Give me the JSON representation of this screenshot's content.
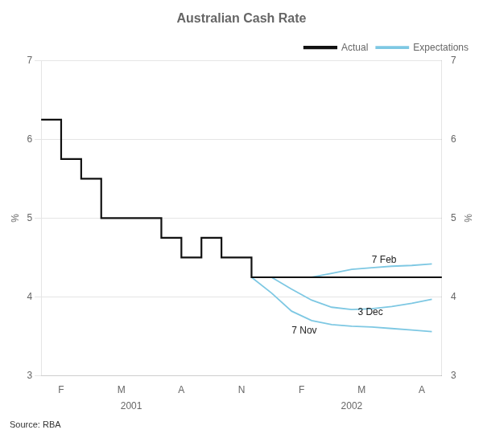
{
  "chart_data": {
    "type": "line",
    "title": "Australian Cash Rate",
    "ylabel": "%",
    "y2label": "%",
    "xlim": [
      0,
      20
    ],
    "xticks": [
      {
        "value": 1,
        "label": "F"
      },
      {
        "value": 4,
        "label": "M"
      },
      {
        "value": 7,
        "label": "A"
      },
      {
        "value": 10,
        "label": "N"
      },
      {
        "value": 13,
        "label": "F"
      },
      {
        "value": 16,
        "label": "M"
      },
      {
        "value": 19,
        "label": "A"
      }
    ],
    "ylim": [
      3,
      7
    ],
    "yticks": [
      3,
      4,
      5,
      6,
      7
    ],
    "y2lim": [
      3,
      7
    ],
    "y2ticks": [
      3,
      4,
      5,
      6,
      7
    ],
    "grid": "y",
    "legend": "upper right",
    "series": [
      {
        "name": "Actual",
        "color": "#111111",
        "x": [
          0,
          1,
          1,
          2,
          2,
          3,
          3,
          6,
          6,
          7,
          7,
          8,
          8,
          9,
          9,
          10.5,
          10.5,
          11,
          11,
          12,
          12,
          13,
          13,
          20
        ],
        "values": [
          6.25,
          6.25,
          5.75,
          5.75,
          5.5,
          5.5,
          5.0,
          5.0,
          4.75,
          4.75,
          4.5,
          4.5,
          4.75,
          4.75,
          4.5,
          4.5,
          4.25,
          4.25,
          4.25,
          4.25,
          4.25,
          4.25,
          4.25,
          4.25
        ]
      },
      {
        "name": "Expectations",
        "color": "#7ec8e3",
        "x": [
          10.5,
          11.5,
          12.5,
          13.5,
          14.5,
          15.5,
          16.5,
          17.5,
          18.5,
          19.5
        ],
        "values": [
          4.25,
          4.05,
          3.82,
          3.7,
          3.65,
          3.63,
          3.62,
          3.6,
          3.58,
          3.56
        ]
      },
      {
        "name": "Expectations",
        "color": "#7ec8e3",
        "x": [
          11.5,
          12.5,
          13.5,
          14.5,
          15.5,
          16.5,
          17.5,
          18.5,
          19.5
        ],
        "values": [
          4.25,
          4.1,
          3.96,
          3.87,
          3.84,
          3.85,
          3.88,
          3.92,
          3.97
        ]
      },
      {
        "name": "Expectations",
        "color": "#7ec8e3",
        "x": [
          13.5,
          14.5,
          15.5,
          16.5,
          17.5,
          18.5,
          19.5
        ],
        "values": [
          4.25,
          4.3,
          4.35,
          4.37,
          4.39,
          4.4,
          4.42
        ]
      }
    ],
    "annotations": [
      {
        "text": "7 Nov",
        "x": 12.5,
        "y": 3.63
      },
      {
        "text": "3 Dec",
        "x": 15.8,
        "y": 3.8
      },
      {
        "text": "7 Feb",
        "x": 16.5,
        "y": 4.47
      }
    ],
    "year_labels": [
      {
        "value": 4.5,
        "label": "2001"
      },
      {
        "value": 15.5,
        "label": "2002"
      }
    ],
    "source": "Source: RBA"
  }
}
